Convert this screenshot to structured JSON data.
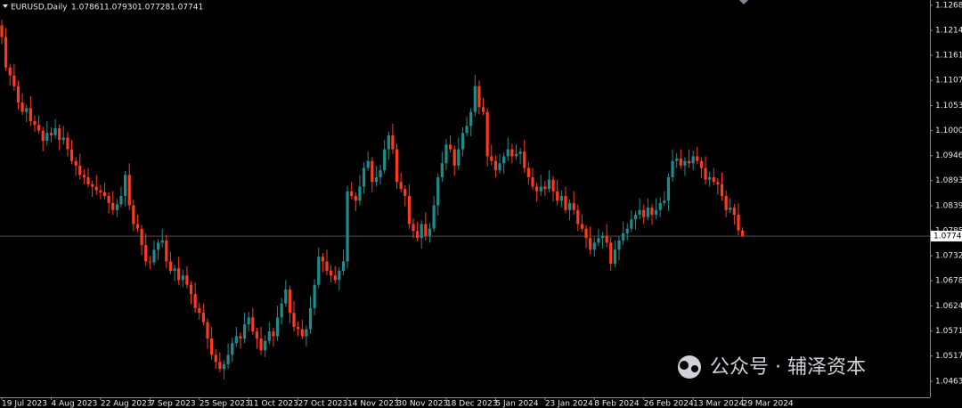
{
  "chart_data": {
    "type": "candlestick",
    "title": "EURUSD,Daily",
    "info_labels": [
      "1.07861",
      "1.07930",
      "1.07728",
      "1.07741"
    ],
    "watermark": "公众号 · 辅泽资本",
    "up_color": "#1f8c8c",
    "down_color": "#ff3a1c",
    "last_price": 1.07741,
    "ylim": [
      1.04292,
      1.12794
    ],
    "yticks": [
      {
        "value": 1.1268,
        "label": "1.12680"
      },
      1.12145,
      {
        "value": 1.1161,
        "label": "1.11610"
      },
      1.11075,
      1.10535,
      {
        "value": 1.1,
        "label": "1.10000"
      },
      1.09465,
      {
        "value": 1.0893,
        "label": "1.08930"
      },
      {
        "value": 1.0839,
        "label": "1.08390"
      },
      1.07855,
      {
        "value": 1.0732,
        "label": "1.07320"
      },
      1.06785,
      1.06245,
      {
        "value": 1.0571,
        "label": "1.05710"
      },
      1.05175,
      1.04635
    ],
    "categories": [
      "19 Jul 2023",
      null,
      null,
      null,
      null,
      null,
      null,
      null,
      null,
      null,
      null,
      null,
      "4 Aug 2023",
      null,
      null,
      null,
      null,
      null,
      null,
      null,
      null,
      null,
      null,
      null,
      "22 Aug 2023",
      null,
      null,
      null,
      null,
      null,
      null,
      null,
      null,
      null,
      null,
      null,
      "7 Sep 2023",
      null,
      null,
      null,
      null,
      null,
      null,
      null,
      null,
      null,
      null,
      null,
      "25 Sep 2023",
      null,
      null,
      null,
      null,
      null,
      null,
      null,
      null,
      null,
      null,
      null,
      "11 Oct 2023",
      null,
      null,
      null,
      null,
      null,
      null,
      null,
      null,
      null,
      null,
      null,
      "27 Oct 2023",
      null,
      null,
      null,
      null,
      null,
      null,
      null,
      null,
      null,
      null,
      null,
      "14 Nov 2023",
      null,
      null,
      null,
      null,
      null,
      null,
      null,
      null,
      null,
      null,
      null,
      "30 Nov 2023",
      null,
      null,
      null,
      null,
      null,
      null,
      null,
      null,
      null,
      null,
      null,
      "18 Dec 2023",
      null,
      null,
      null,
      null,
      null,
      null,
      null,
      null,
      null,
      null,
      null,
      "5 Jan 2024",
      null,
      null,
      null,
      null,
      null,
      null,
      null,
      null,
      null,
      null,
      null,
      "23 Jan 2024",
      null,
      null,
      null,
      null,
      null,
      null,
      null,
      null,
      null,
      null,
      null,
      "8 Feb 2024",
      null,
      null,
      null,
      null,
      null,
      null,
      null,
      null,
      null,
      null,
      null,
      "26 Feb 2024",
      null,
      null,
      null,
      null,
      null,
      null,
      null,
      null,
      null,
      null,
      null,
      "13 Mar 2024",
      null,
      null,
      null,
      null,
      null,
      null,
      null,
      null,
      null,
      null,
      null,
      "29 Mar 2024"
    ],
    "ohlc": [
      [
        1.1225,
        1.1237,
        1.1185,
        1.12
      ],
      [
        1.12,
        1.122,
        1.1128,
        1.1135
      ],
      [
        1.1135,
        1.1143,
        1.1096,
        1.1118
      ],
      [
        1.1118,
        1.1143,
        1.1085,
        1.1095
      ],
      [
        1.1095,
        1.1107,
        1.1045,
        1.106
      ],
      [
        1.106,
        1.108,
        1.1033,
        1.104
      ],
      [
        1.104,
        1.1056,
        1.1018,
        1.1048
      ],
      [
        1.1048,
        1.1073,
        1.101,
        1.102
      ],
      [
        1.102,
        1.1032,
        1.0997,
        1.1012
      ],
      [
        1.1012,
        1.1032,
        1.0993,
        1.1
      ],
      [
        1.1,
        1.1008,
        1.0956,
        1.0978
      ],
      [
        1.0978,
        1.102,
        1.0968,
        1.0995
      ],
      [
        1.0995,
        1.1007,
        1.0975,
        1.099
      ],
      [
        1.099,
        1.1025,
        1.0983,
        1.1005
      ],
      [
        1.1005,
        1.1013,
        1.0958,
        1.098
      ],
      [
        1.098,
        1.101,
        1.097,
        1.0985
      ],
      [
        1.0985,
        1.0997,
        1.0945,
        1.096
      ],
      [
        1.096,
        1.098,
        1.0928,
        1.0935
      ],
      [
        1.0935,
        1.0943,
        1.0903,
        1.0925
      ],
      [
        1.0925,
        1.095,
        1.0895,
        1.0905
      ],
      [
        1.0905,
        1.0917,
        1.0885,
        1.09
      ],
      [
        1.09,
        1.092,
        1.0878,
        1.0885
      ],
      [
        1.0885,
        1.0893,
        1.0858,
        1.088
      ],
      [
        1.088,
        1.0905,
        1.0862,
        1.0872
      ],
      [
        1.0872,
        1.0884,
        1.0853,
        1.0868
      ],
      [
        1.0868,
        1.0888,
        1.0853,
        1.086
      ],
      [
        1.086,
        1.0868,
        1.0823,
        1.0845
      ],
      [
        1.0845,
        1.087,
        1.082,
        1.083
      ],
      [
        1.083,
        1.0854,
        1.0815,
        1.0842
      ],
      [
        1.0842,
        1.088,
        1.0835,
        1.086
      ],
      [
        1.086,
        1.0913,
        1.0838,
        1.0905
      ],
      [
        1.0905,
        1.093,
        1.083,
        1.084
      ],
      [
        1.084,
        1.0852,
        1.0785,
        1.08
      ],
      [
        1.08,
        1.082,
        1.0783,
        1.079
      ],
      [
        1.079,
        1.0798,
        1.0733,
        1.0755
      ],
      [
        1.0755,
        1.078,
        1.071,
        1.072
      ],
      [
        1.072,
        1.0732,
        1.0703,
        1.0718
      ],
      [
        1.0718,
        1.0765,
        1.0711,
        1.0745
      ],
      [
        1.0745,
        1.0768,
        1.0723,
        1.076
      ],
      [
        1.076,
        1.079,
        1.075,
        1.0765
      ],
      [
        1.0765,
        1.0777,
        1.0705,
        1.072
      ],
      [
        1.072,
        1.074,
        1.0693,
        1.07
      ],
      [
        1.07,
        1.0713,
        1.0678,
        1.0705
      ],
      [
        1.0705,
        1.073,
        1.067,
        1.068
      ],
      [
        1.068,
        1.0702,
        1.0665,
        1.069
      ],
      [
        1.069,
        1.071,
        1.0663,
        1.067
      ],
      [
        1.067,
        1.0678,
        1.0628,
        1.065
      ],
      [
        1.065,
        1.0675,
        1.061,
        1.062
      ],
      [
        1.062,
        1.0632,
        1.0595,
        1.061
      ],
      [
        1.061,
        1.063,
        1.0583,
        1.059
      ],
      [
        1.059,
        1.0598,
        1.0533,
        1.0555
      ],
      [
        1.0555,
        1.058,
        1.051,
        1.052
      ],
      [
        1.052,
        1.0532,
        1.049,
        1.0505
      ],
      [
        1.0505,
        1.0525,
        1.0483,
        1.049
      ],
      [
        1.049,
        1.0508,
        1.0468,
        1.05
      ],
      [
        1.05,
        1.0545,
        1.049,
        1.052
      ],
      [
        1.052,
        1.0557,
        1.0505,
        1.0545
      ],
      [
        1.0545,
        1.058,
        1.0538,
        1.056
      ],
      [
        1.056,
        1.0568,
        1.0533,
        1.0555
      ],
      [
        1.0555,
        1.061,
        1.0545,
        1.0585
      ],
      [
        1.0585,
        1.0612,
        1.057,
        1.06
      ],
      [
        1.06,
        1.062,
        1.0563,
        1.057
      ],
      [
        1.057,
        1.0578,
        1.0533,
        1.0555
      ],
      [
        1.0555,
        1.058,
        1.052,
        1.053
      ],
      [
        1.053,
        1.0562,
        1.0515,
        1.055
      ],
      [
        1.055,
        1.059,
        1.0543,
        1.057
      ],
      [
        1.057,
        1.0578,
        1.0538,
        1.056
      ],
      [
        1.056,
        1.0625,
        1.055,
        1.06
      ],
      [
        1.06,
        1.0642,
        1.0585,
        1.063
      ],
      [
        1.063,
        1.068,
        1.0623,
        1.066
      ],
      [
        1.066,
        1.0668,
        1.0588,
        1.061
      ],
      [
        1.061,
        1.0635,
        1.057,
        1.058
      ],
      [
        1.058,
        1.0592,
        1.056,
        1.0575
      ],
      [
        1.0575,
        1.0595,
        1.0553,
        1.056
      ],
      [
        1.056,
        1.0583,
        1.0538,
        1.0575
      ],
      [
        1.0575,
        1.0645,
        1.0565,
        1.062
      ],
      [
        1.062,
        1.0682,
        1.0605,
        1.067
      ],
      [
        1.067,
        1.075,
        1.0663,
        1.073
      ],
      [
        1.073,
        1.0738,
        1.0698,
        1.072
      ],
      [
        1.072,
        1.0745,
        1.069,
        1.07
      ],
      [
        1.07,
        1.0712,
        1.0675,
        1.069
      ],
      [
        1.069,
        1.071,
        1.0673,
        1.068
      ],
      [
        1.068,
        1.0708,
        1.0658,
        1.07
      ],
      [
        1.07,
        1.0745,
        1.069,
        1.072
      ],
      [
        1.072,
        1.0882,
        1.0705,
        1.087
      ],
      [
        1.087,
        1.089,
        1.0853,
        1.086
      ],
      [
        1.086,
        1.0868,
        1.0828,
        1.085
      ],
      [
        1.085,
        1.0905,
        1.084,
        1.088
      ],
      [
        1.088,
        1.0932,
        1.0865,
        1.092
      ],
      [
        1.092,
        1.0955,
        1.0913,
        1.0935
      ],
      [
        1.0935,
        1.0943,
        1.0868,
        1.089
      ],
      [
        1.089,
        1.0925,
        1.088,
        1.09
      ],
      [
        1.09,
        1.0927,
        1.0885,
        1.0915
      ],
      [
        1.0915,
        1.098,
        1.0908,
        1.096
      ],
      [
        1.096,
        1.0998,
        1.0938,
        1.099
      ],
      [
        1.099,
        1.1015,
        1.095,
        1.096
      ],
      [
        1.096,
        1.0972,
        1.0875,
        1.089
      ],
      [
        1.089,
        1.091,
        1.0868,
        1.0875
      ],
      [
        1.0875,
        1.0883,
        1.0838,
        1.086
      ],
      [
        1.086,
        1.0885,
        1.079,
        1.08
      ],
      [
        1.08,
        1.0812,
        1.077,
        1.0785
      ],
      [
        1.0785,
        1.0805,
        1.0763,
        1.077
      ],
      [
        1.077,
        1.0808,
        1.0748,
        1.08
      ],
      [
        1.08,
        1.0825,
        1.0765,
        1.0775
      ],
      [
        1.0775,
        1.0802,
        1.076,
        1.079
      ],
      [
        1.079,
        1.086,
        1.0783,
        1.084
      ],
      [
        1.084,
        1.0908,
        1.0818,
        1.09
      ],
      [
        1.09,
        1.0955,
        1.089,
        1.093
      ],
      [
        1.093,
        1.0982,
        1.0915,
        1.097
      ],
      [
        1.097,
        1.099,
        1.0953,
        1.096
      ],
      [
        1.096,
        1.0968,
        1.0903,
        1.0925
      ],
      [
        1.0925,
        1.0985,
        1.0915,
        1.096
      ],
      [
        1.096,
        1.1007,
        1.0945,
        1.0995
      ],
      [
        1.0995,
        1.103,
        1.0988,
        1.101
      ],
      [
        1.101,
        1.1048,
        1.0988,
        1.104
      ],
      [
        1.104,
        1.112,
        1.103,
        1.1095
      ],
      [
        1.1095,
        1.1107,
        1.1035,
        1.105
      ],
      [
        1.105,
        1.107,
        1.1033,
        1.104
      ],
      [
        1.104,
        1.1048,
        1.0923,
        1.0945
      ],
      [
        1.0945,
        1.097,
        1.0925,
        1.0935
      ],
      [
        1.0935,
        1.0947,
        1.09,
        1.0915
      ],
      [
        1.0915,
        1.095,
        1.0908,
        1.093
      ],
      [
        1.093,
        1.0953,
        1.0908,
        1.0945
      ],
      [
        1.0945,
        1.0985,
        1.0935,
        1.096
      ],
      [
        1.096,
        1.0972,
        1.093,
        1.0945
      ],
      [
        1.0945,
        1.097,
        1.0938,
        1.095
      ],
      [
        1.095,
        1.0963,
        1.0928,
        1.0955
      ],
      [
        1.0955,
        1.098,
        1.091,
        1.092
      ],
      [
        1.092,
        1.0932,
        1.0885,
        1.09
      ],
      [
        1.09,
        1.092,
        1.0873,
        1.088
      ],
      [
        1.088,
        1.0888,
        1.0848,
        1.087
      ],
      [
        1.087,
        1.0905,
        1.086,
        1.088
      ],
      [
        1.088,
        1.0892,
        1.086,
        1.0875
      ],
      [
        1.0875,
        1.0915,
        1.0868,
        1.0895
      ],
      [
        1.0895,
        1.0903,
        1.0848,
        1.087
      ],
      [
        1.087,
        1.0895,
        1.084,
        1.085
      ],
      [
        1.085,
        1.0872,
        1.0835,
        1.086
      ],
      [
        1.086,
        1.088,
        1.0823,
        1.083
      ],
      [
        1.083,
        1.0853,
        1.0808,
        1.0845
      ],
      [
        1.0845,
        1.087,
        1.082,
        1.083
      ],
      [
        1.083,
        1.0842,
        1.0785,
        1.08
      ],
      [
        1.08,
        1.082,
        1.0783,
        1.079
      ],
      [
        1.079,
        1.0798,
        1.0748,
        1.077
      ],
      [
        1.077,
        1.0795,
        1.0735,
        1.0745
      ],
      [
        1.0745,
        1.0772,
        1.073,
        1.076
      ],
      [
        1.076,
        1.079,
        1.0753,
        1.077
      ],
      [
        1.077,
        1.0783,
        1.0748,
        1.0775
      ],
      [
        1.0775,
        1.08,
        1.075,
        1.076
      ],
      [
        1.076,
        1.0772,
        1.07,
        1.0715
      ],
      [
        1.0715,
        1.0765,
        1.0708,
        1.0745
      ],
      [
        1.0745,
        1.0773,
        1.0723,
        1.0765
      ],
      [
        1.0765,
        1.0805,
        1.0755,
        1.078
      ],
      [
        1.078,
        1.0802,
        1.0765,
        1.079
      ],
      [
        1.079,
        1.083,
        1.0783,
        1.081
      ],
      [
        1.081,
        1.0828,
        1.0788,
        1.082
      ],
      [
        1.082,
        1.0855,
        1.081,
        1.083
      ],
      [
        1.083,
        1.0842,
        1.08,
        1.0815
      ],
      [
        1.0815,
        1.0855,
        1.0808,
        1.0835
      ],
      [
        1.0835,
        1.0843,
        1.0798,
        1.082
      ],
      [
        1.082,
        1.0855,
        1.081,
        1.083
      ],
      [
        1.083,
        1.0857,
        1.0815,
        1.0845
      ],
      [
        1.0845,
        1.087,
        1.0838,
        1.085
      ],
      [
        1.085,
        1.0908,
        1.0828,
        1.09
      ],
      [
        1.09,
        1.096,
        1.089,
        1.0935
      ],
      [
        1.0935,
        1.0952,
        1.092,
        1.094
      ],
      [
        1.094,
        1.096,
        1.0918,
        1.0925
      ],
      [
        1.0925,
        1.0943,
        1.0903,
        1.0935
      ],
      [
        1.0935,
        1.096,
        1.092,
        1.093
      ],
      [
        1.093,
        1.0957,
        1.0915,
        1.0945
      ],
      [
        1.0945,
        1.0965,
        1.0928,
        1.0935
      ],
      [
        1.0935,
        1.0943,
        1.0898,
        1.092
      ],
      [
        1.092,
        1.0945,
        1.0885,
        1.0895
      ],
      [
        1.0895,
        1.0912,
        1.088,
        1.09
      ],
      [
        1.09,
        1.092,
        1.0883,
        1.089
      ],
      [
        1.089,
        1.0898,
        1.0863,
        1.0885
      ],
      [
        1.0885,
        1.091,
        1.085,
        1.086
      ],
      [
        1.086,
        1.0872,
        1.0815,
        1.083
      ],
      [
        1.083,
        1.0855,
        1.0823,
        1.0835
      ],
      [
        1.0835,
        1.0843,
        1.0798,
        1.082
      ],
      [
        1.082,
        1.0845,
        1.0776,
        1.07861
      ],
      [
        1.07861,
        1.0793,
        1.07728,
        1.07741
      ]
    ]
  }
}
